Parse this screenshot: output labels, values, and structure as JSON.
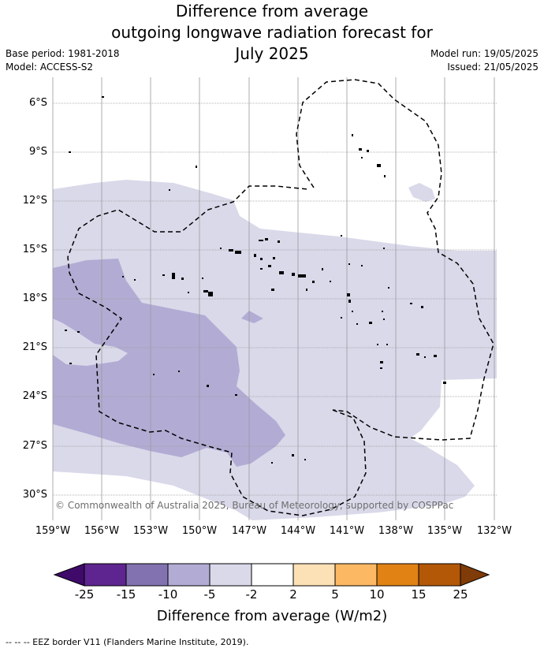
{
  "title": {
    "line1": "Difference from average",
    "line2": "outgoing longwave radiation forecast for",
    "line3": "July 2025"
  },
  "meta": {
    "base_period": "Base period: 1981-2018",
    "model": "Model: ACCESS-S2",
    "model_run": "Model run: 19/05/2025",
    "issued": "Issued: 21/05/2025"
  },
  "map": {
    "lat_labels": [
      "6°S",
      "9°S",
      "12°S",
      "15°S",
      "18°S",
      "21°S",
      "24°S",
      "27°S",
      "30°S"
    ],
    "lon_labels": [
      "159°W",
      "156°W",
      "153°W",
      "150°W",
      "147°W",
      "144°W",
      "141°W",
      "138°W",
      "135°W",
      "132°W"
    ],
    "copyright": "© Commonwealth of Australia 2025, Bureau of Meteorology, supported by COSPPac",
    "gridlines": true
  },
  "colorbar": {
    "ticks": [
      "-25",
      "-15",
      "-10",
      "-5",
      "-2",
      "2",
      "5",
      "10",
      "15",
      "25"
    ],
    "colors": [
      "#3f0a6a",
      "#5e2590",
      "#8272b0",
      "#b2acd4",
      "#d9d9ea",
      "#ffffff",
      "#fde1b6",
      "#fdb863",
      "#e08214",
      "#b35806",
      "#7f3b08"
    ],
    "label": "Difference from average (W/m2)"
  },
  "footer": {
    "legend": "--  --  -- EEZ border V11 (Flanders Marine Institute, 2019)."
  }
}
